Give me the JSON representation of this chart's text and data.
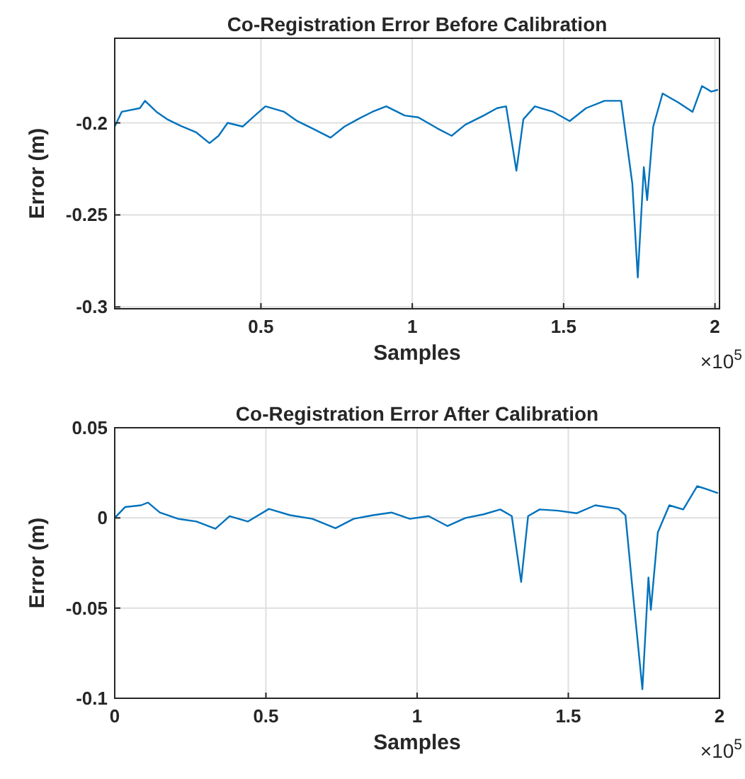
{
  "chart_data": [
    {
      "type": "line",
      "title": "Co-Registration Error Before Calibration",
      "xlabel": "Samples",
      "ylabel": "Error (m)",
      "annotations": [
        "×10$^{5}$"
      ],
      "grid": true,
      "xlim": [
        0.017,
        2.015
      ],
      "ylim": [
        -0.301,
        -0.154
      ],
      "xticks": [
        0.5,
        1,
        1.5,
        2
      ],
      "yticks": [
        -0.3,
        -0.25,
        -0.2
      ],
      "series": [
        {
          "color": "#0072bd",
          "x": [
            0.017,
            0.04,
            0.1,
            0.117,
            0.155,
            0.19,
            0.24,
            0.285,
            0.33,
            0.36,
            0.39,
            0.44,
            0.48,
            0.515,
            0.577,
            0.62,
            0.67,
            0.73,
            0.776,
            0.82,
            0.868,
            0.914,
            0.975,
            1.02,
            1.083,
            1.13,
            1.175,
            1.236,
            1.28,
            1.31,
            1.344,
            1.367,
            1.405,
            1.466,
            1.52,
            1.574,
            1.635,
            1.69,
            1.704,
            1.727,
            1.745,
            1.765,
            1.776,
            1.796,
            1.827,
            1.88,
            1.926,
            1.957,
            1.988,
            2.01
          ],
          "values": [
            -0.202,
            -0.194,
            -0.192,
            -0.188,
            -0.194,
            -0.198,
            -0.202,
            -0.205,
            -0.211,
            -0.207,
            -0.2,
            -0.202,
            -0.196,
            -0.191,
            -0.194,
            -0.199,
            -0.203,
            -0.208,
            -0.202,
            -0.198,
            -0.194,
            -0.191,
            -0.196,
            -0.197,
            -0.203,
            -0.207,
            -0.201,
            -0.196,
            -0.192,
            -0.191,
            -0.226,
            -0.198,
            -0.191,
            -0.194,
            -0.199,
            -0.192,
            -0.188,
            -0.188,
            -0.205,
            -0.233,
            -0.284,
            -0.224,
            -0.242,
            -0.202,
            -0.184,
            -0.189,
            -0.194,
            -0.18,
            -0.183,
            -0.182
          ]
        }
      ]
    },
    {
      "type": "line",
      "title": "Co-Registration Error After Calibration",
      "xlabel": "Samples",
      "ylabel": "Error (m)",
      "annotations": [
        "×10$^{5}$"
      ],
      "grid": true,
      "xlim": [
        0,
        2
      ],
      "ylim": [
        -0.1,
        0.05
      ],
      "xticks": [
        0,
        0.5,
        1,
        1.5,
        2
      ],
      "yticks": [
        -0.1,
        -0.05,
        0,
        0.05
      ],
      "series": [
        {
          "color": "#0072bd",
          "x": [
            0,
            0.034,
            0.087,
            0.11,
            0.149,
            0.21,
            0.27,
            0.333,
            0.38,
            0.44,
            0.51,
            0.58,
            0.654,
            0.73,
            0.79,
            0.854,
            0.915,
            0.976,
            1.038,
            1.1,
            1.16,
            1.22,
            1.275,
            1.313,
            1.344,
            1.367,
            1.405,
            1.466,
            1.528,
            1.589,
            1.666,
            1.689,
            1.712,
            1.745,
            1.765,
            1.773,
            1.796,
            1.834,
            1.88,
            1.926,
            1.957,
            1.995
          ],
          "values": [
            0,
            0.006,
            0.007,
            0.0085,
            0.003,
            -0.0005,
            -0.002,
            -0.006,
            0.001,
            -0.002,
            0.005,
            0.0015,
            -0.0005,
            -0.0057,
            -0.0005,
            0.0015,
            0.003,
            -0.0005,
            0.001,
            -0.0045,
            0,
            0.002,
            0.0047,
            0.001,
            -0.0355,
            0.001,
            0.0047,
            0.004,
            0.0026,
            0.007,
            0.005,
            0.0015,
            -0.039,
            -0.095,
            -0.033,
            -0.051,
            -0.008,
            0.007,
            0.0047,
            0.0176,
            0.016,
            0.0137
          ]
        }
      ]
    }
  ]
}
